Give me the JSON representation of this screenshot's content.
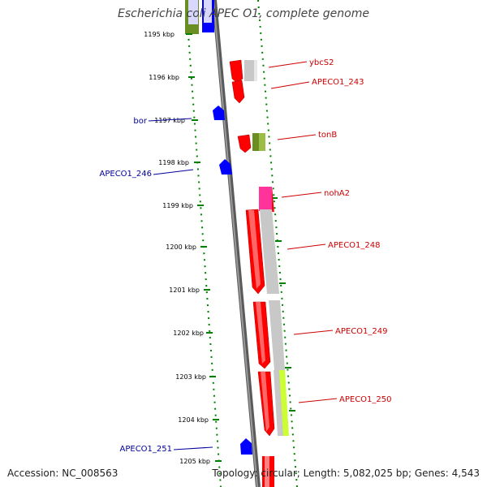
{
  "title": "Escherichia coli APEC O1, complete genome",
  "footer": {
    "accession": "Accession: NC_008563",
    "summary": "Topology: circular; Length: 5,082,025 bp; Genes: 4,543"
  },
  "colors": {
    "red": "#ff0000",
    "gray": "#c8c8c8",
    "olive": "#6b8e23",
    "blue": "#0000ff",
    "magenta": "#ff3399",
    "yellowgreen": "#ccff33",
    "label_red": "#cc0000",
    "label_blue": "#000099",
    "tick_green": "#008000"
  },
  "scale": {
    "unit": "kbp",
    "ticks": [
      "1195 kbp",
      "1196 kbp",
      "1197 kbp",
      "1198 kbp",
      "1199 kbp",
      "1200 kbp",
      "1201 kbp",
      "1202 kbp",
      "1203 kbp",
      "1204 kbp",
      "1205 kbp"
    ]
  },
  "gene_labels": {
    "ybcS2": "ybcS2",
    "APECO1_243": "APECO1_243",
    "bor": "bor",
    "tonB": "tonB",
    "APECO1_246": "APECO1_246",
    "nohA2": "nohA2",
    "APECO1_248": "APECO1_248",
    "APECO1_249": "APECO1_249",
    "APECO1_250": "APECO1_250",
    "APECO1_251": "APECO1_251"
  }
}
